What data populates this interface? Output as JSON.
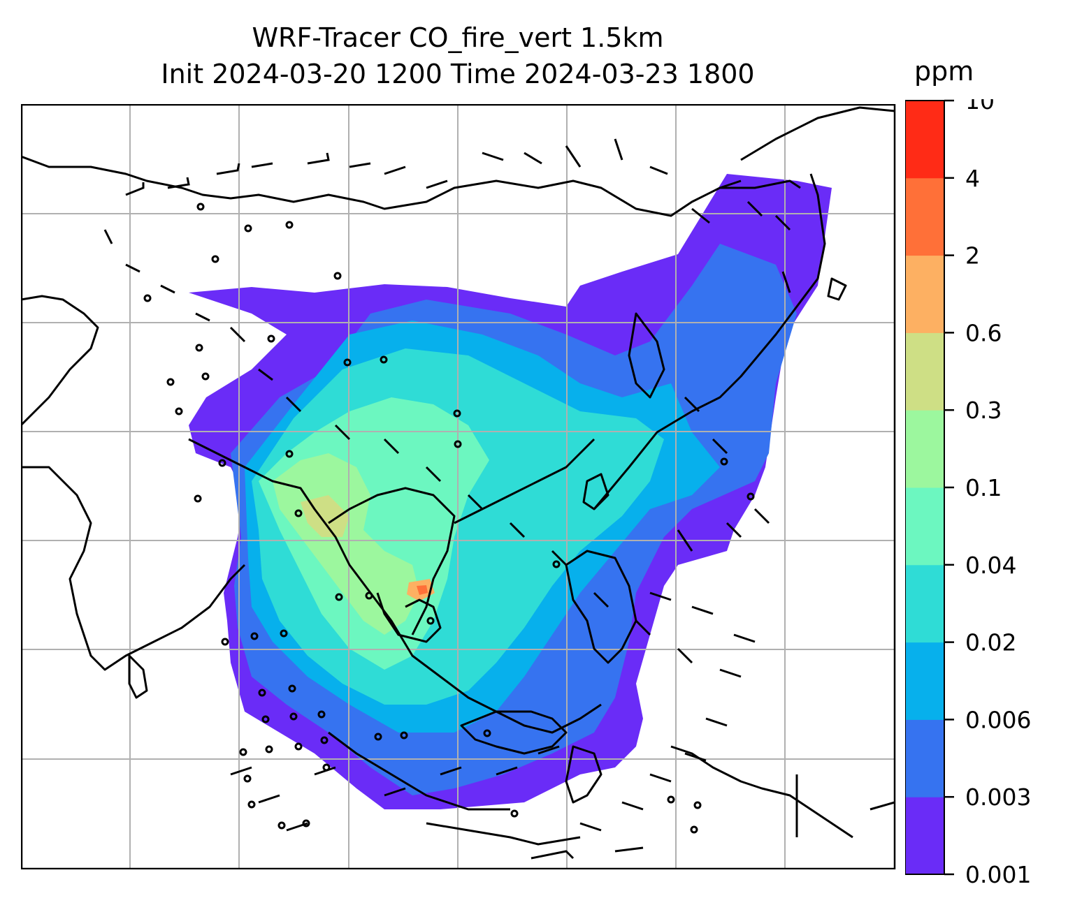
{
  "title": {
    "line1": "WRF-Tracer CO_fire_vert 1.5km",
    "line2": "Init 2024-03-20 1200 Time 2024-03-23 1800"
  },
  "colorbar": {
    "unit": "ppm",
    "levels": [
      "0.001",
      "0.003",
      "0.006",
      "0.02",
      "0.04",
      "0.1",
      "0.3",
      "0.6",
      "2",
      "4",
      "10"
    ],
    "colors": [
      "#6a2cf7",
      "#3673f0",
      "#07b0ec",
      "#2fdcd6",
      "#6cf7c0",
      "#9cf79e",
      "#cedf85",
      "#fdb062",
      "#ff7038",
      "#ff2b16"
    ]
  },
  "map": {
    "background": "#ffffff",
    "coastline_color": "#000000",
    "gridline_color": "#b0b0b0"
  }
}
